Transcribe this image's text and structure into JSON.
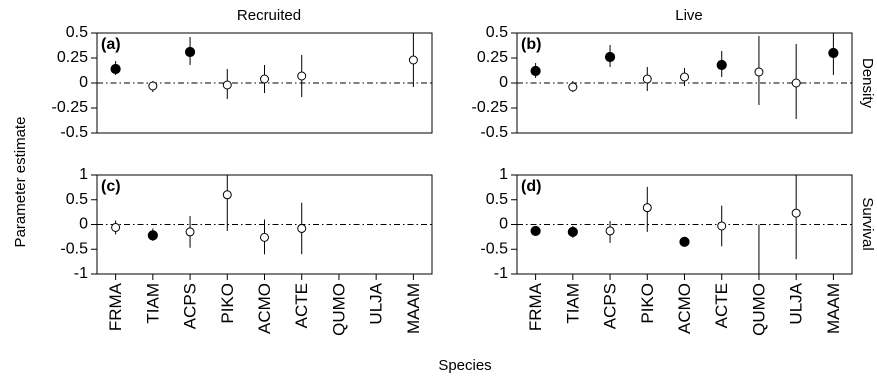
{
  "figure": {
    "ylabel": "Parameter estimate",
    "xlabel": "Species",
    "column_titles": [
      "Recruited",
      "Live"
    ],
    "row_titles": [
      "Density",
      "Survival"
    ]
  },
  "chart_data": [
    {
      "type": "scatter",
      "panel_label": "(a)",
      "column": "Recruited",
      "row": "Density",
      "categories": [
        "FRMA",
        "TIAM",
        "ACPS",
        "PIKO",
        "ACMO",
        "ACTE",
        "QUMO",
        "ULJA",
        "MAAM"
      ],
      "ylim": [
        -0.5,
        0.5
      ],
      "yticks": [
        -0.5,
        -0.25,
        0,
        0.25,
        0.5
      ],
      "ytick_labels": [
        "-0.5",
        "-0.25",
        "0",
        "0.25",
        "0.5"
      ],
      "points": [
        {
          "species": "FRMA",
          "estimate": 0.14,
          "lower": 0.08,
          "upper": 0.22,
          "filled": true
        },
        {
          "species": "TIAM",
          "estimate": -0.03,
          "lower": -0.09,
          "upper": 0.02,
          "filled": false
        },
        {
          "species": "ACPS",
          "estimate": 0.31,
          "lower": 0.18,
          "upper": 0.46,
          "filled": true
        },
        {
          "species": "PIKO",
          "estimate": -0.02,
          "lower": -0.16,
          "upper": 0.14,
          "filled": false
        },
        {
          "species": "ACMO",
          "estimate": 0.04,
          "lower": -0.1,
          "upper": 0.18,
          "filled": false
        },
        {
          "species": "ACTE",
          "estimate": 0.07,
          "lower": -0.14,
          "upper": 0.28,
          "filled": false
        },
        {
          "species": "MAAM",
          "estimate": 0.23,
          "lower": -0.04,
          "upper": 0.5,
          "filled": false
        }
      ]
    },
    {
      "type": "scatter",
      "panel_label": "(b)",
      "column": "Live",
      "row": "Density",
      "categories": [
        "FRMA",
        "TIAM",
        "ACPS",
        "PIKO",
        "ACMO",
        "ACTE",
        "QUMO",
        "ULJA",
        "MAAM"
      ],
      "ylim": [
        -0.5,
        0.5
      ],
      "yticks": [
        -0.5,
        -0.25,
        0,
        0.25,
        0.5
      ],
      "ytick_labels": [
        "-0.5",
        "-0.25",
        "0",
        "0.25",
        "0.5"
      ],
      "points": [
        {
          "species": "FRMA",
          "estimate": 0.12,
          "lower": 0.05,
          "upper": 0.2,
          "filled": true
        },
        {
          "species": "TIAM",
          "estimate": -0.04,
          "lower": -0.09,
          "upper": 0.02,
          "filled": false
        },
        {
          "species": "ACPS",
          "estimate": 0.26,
          "lower": 0.16,
          "upper": 0.38,
          "filled": true
        },
        {
          "species": "PIKO",
          "estimate": 0.04,
          "lower": -0.08,
          "upper": 0.16,
          "filled": false
        },
        {
          "species": "ACMO",
          "estimate": 0.06,
          "lower": -0.03,
          "upper": 0.15,
          "filled": false
        },
        {
          "species": "ACTE",
          "estimate": 0.18,
          "lower": 0.06,
          "upper": 0.32,
          "filled": true
        },
        {
          "species": "QUMO",
          "estimate": 0.11,
          "lower": -0.22,
          "upper": 0.47,
          "filled": false
        },
        {
          "species": "ULJA",
          "estimate": 0.0,
          "lower": -0.36,
          "upper": 0.39,
          "filled": false
        },
        {
          "species": "MAAM",
          "estimate": 0.3,
          "lower": 0.08,
          "upper": 0.5,
          "filled": true
        }
      ]
    },
    {
      "type": "scatter",
      "panel_label": "(c)",
      "column": "Recruited",
      "row": "Survival",
      "categories": [
        "FRMA",
        "TIAM",
        "ACPS",
        "PIKO",
        "ACMO",
        "ACTE",
        "QUMO",
        "ULJA",
        "MAAM"
      ],
      "ylim": [
        -1,
        1
      ],
      "yticks": [
        -1,
        -0.5,
        0,
        0.5,
        1
      ],
      "ytick_labels": [
        "-1",
        "-0.5",
        "0",
        "0.5",
        "1"
      ],
      "points": [
        {
          "species": "FRMA",
          "estimate": -0.06,
          "lower": -0.2,
          "upper": 0.08,
          "filled": false
        },
        {
          "species": "TIAM",
          "estimate": -0.22,
          "lower": -0.33,
          "upper": -0.08,
          "filled": true
        },
        {
          "species": "ACPS",
          "estimate": -0.15,
          "lower": -0.47,
          "upper": 0.17,
          "filled": false
        },
        {
          "species": "PIKO",
          "estimate": 0.6,
          "lower": -0.13,
          "upper": 1.0,
          "filled": false
        },
        {
          "species": "ACMO",
          "estimate": -0.26,
          "lower": -0.6,
          "upper": 0.1,
          "filled": false
        },
        {
          "species": "ACTE",
          "estimate": -0.08,
          "lower": -0.6,
          "upper": 0.44,
          "filled": false
        }
      ]
    },
    {
      "type": "scatter",
      "panel_label": "(d)",
      "column": "Live",
      "row": "Survival",
      "categories": [
        "FRMA",
        "TIAM",
        "ACPS",
        "PIKO",
        "ACMO",
        "ACTE",
        "QUMO",
        "ULJA",
        "MAAM"
      ],
      "ylim": [
        -1,
        1
      ],
      "yticks": [
        -1,
        -0.5,
        0,
        0.5,
        1
      ],
      "ytick_labels": [
        "-1",
        "-0.5",
        "0",
        "0.5",
        "1"
      ],
      "points": [
        {
          "species": "FRMA",
          "estimate": -0.13,
          "lower": -0.2,
          "upper": -0.05,
          "filled": true
        },
        {
          "species": "TIAM",
          "estimate": -0.15,
          "lower": -0.27,
          "upper": -0.03,
          "filled": true
        },
        {
          "species": "ACPS",
          "estimate": -0.13,
          "lower": -0.37,
          "upper": 0.07,
          "filled": false
        },
        {
          "species": "PIKO",
          "estimate": 0.34,
          "lower": -0.15,
          "upper": 0.76,
          "filled": false
        },
        {
          "species": "ACMO",
          "estimate": -0.35,
          "lower": -0.39,
          "upper": -0.3,
          "filled": true
        },
        {
          "species": "ACTE",
          "estimate": -0.03,
          "lower": -0.44,
          "upper": 0.38,
          "filled": false
        },
        {
          "species": "QUMO",
          "estimate": null,
          "lower": -1.0,
          "upper": 0.0,
          "filled": false
        },
        {
          "species": "ULJA",
          "estimate": 0.23,
          "lower": -0.7,
          "upper": 1.0,
          "filled": false
        }
      ]
    }
  ]
}
